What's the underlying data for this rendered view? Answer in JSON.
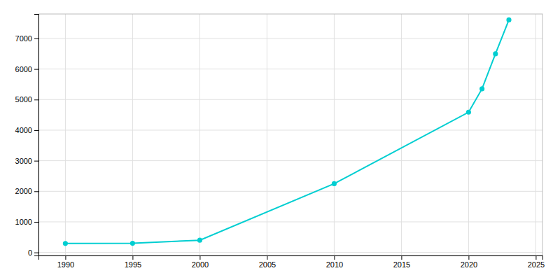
{
  "chart_data": {
    "type": "line",
    "x": [
      1990,
      1995,
      2000,
      2010,
      2020,
      2021,
      2022,
      2023
    ],
    "values": [
      293,
      298,
      400,
      2249,
      4588,
      5352,
      6497,
      7607
    ],
    "color": "#00CED1",
    "marker": "circle",
    "xlim": [
      1988,
      2025.5
    ],
    "ylim": [
      -100,
      7800
    ],
    "xticks": [
      1990,
      1995,
      2000,
      2005,
      2010,
      2015,
      2020,
      2025
    ],
    "yticks": [
      0,
      1000,
      2000,
      3000,
      4000,
      5000,
      6000,
      7000
    ],
    "grid": true
  }
}
